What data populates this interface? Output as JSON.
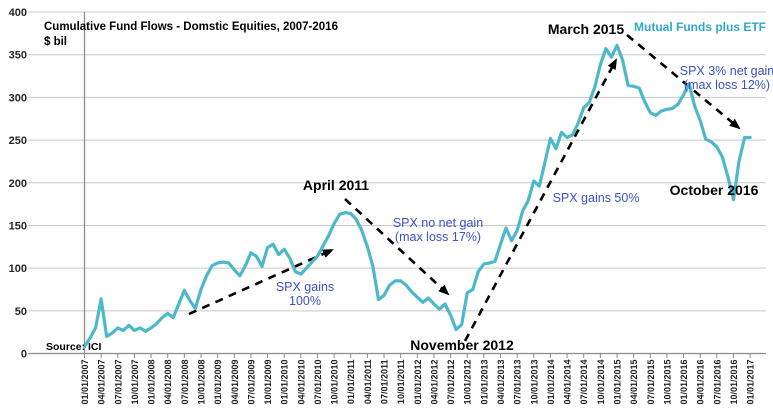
{
  "chart": {
    "title": "Cumulative Fund Flows - Domstic Equities, 2007-2016",
    "subtitle": "$ bil",
    "source": "Source: ICI",
    "legend_label": "Mutual Funds plus ETF",
    "annotations": {
      "april_2011": "April 2011",
      "march_2015": "March 2015",
      "november_2012": "November 2012",
      "october_2016": "October 2016",
      "spx_gains_100_line1": "SPX gains",
      "spx_gains_100_line2": "100%",
      "spx_no_net_gain_line1": "SPX no net gain",
      "spx_no_net_gain_line2": "(max loss 17%)",
      "spx_gains_50": "SPX gains 50%",
      "spx_3_net_gain_line1": "SPX 3% net gain",
      "spx_3_net_gain_line2": "(max loss 12%)"
    },
    "colors": {
      "line_teal": "#4db8ca",
      "legend_teal": "#2fa9c5",
      "annotation_blue": "#3b51c9",
      "gridline_gray": "#c8c8c8",
      "axis_gray": "#8c8c8c",
      "text_black": "#000000"
    }
  },
  "chart_data": {
    "type": "line",
    "title": "Cumulative Fund Flows - Domstic Equities, 2007-2016",
    "ylabel": "$ bil",
    "ylim": [
      0,
      400
    ],
    "y_ticks": [
      0,
      50,
      100,
      150,
      200,
      250,
      300,
      350,
      400
    ],
    "grid": "horizontal",
    "legend_position": "top-right",
    "x_frequency": "monthly",
    "x_start": "01/2007",
    "x_end": "01/2017",
    "x_tick_labels": [
      "01/01/2007",
      "04/01/2007",
      "07/01/2007",
      "10/01/2007",
      "01/01/2008",
      "04/01/2008",
      "07/01/2008",
      "10/01/2008",
      "01/01/2009",
      "04/01/2009",
      "07/01/2009",
      "10/01/2009",
      "01/01/2010",
      "04/01/2010",
      "07/01/2010",
      "10/01/2010",
      "01/01/2011",
      "04/01/2011",
      "07/01/2011",
      "10/01/2011",
      "01/01/2012",
      "04/01/2012",
      "07/01/2012",
      "10/01/2012",
      "01/01/2013",
      "04/01/2013",
      "07/01/2013",
      "10/01/2013",
      "01/01/2014",
      "04/01/2014",
      "07/01/2014",
      "10/01/2014",
      "01/01/2015",
      "04/01/2015",
      "07/01/2015",
      "10/01/2015",
      "01/01/2016",
      "04/01/2016",
      "07/01/2016",
      "10/01/2016",
      "01/01/2017"
    ],
    "series": [
      {
        "name": "Mutual Funds plus ETF",
        "values": [
          8,
          18,
          30,
          64,
          20,
          24,
          30,
          27,
          33,
          27,
          30,
          26,
          30,
          35,
          42,
          47,
          42,
          58,
          74,
          62,
          53,
          75,
          91,
          103,
          106,
          107,
          106,
          98,
          91,
          103,
          118,
          114,
          102,
          124,
          128,
          116,
          122,
          112,
          96,
          93,
          100,
          107,
          114,
          126,
          138,
          152,
          163,
          165,
          164,
          157,
          144,
          125,
          102,
          63,
          68,
          80,
          85,
          85,
          80,
          72,
          66,
          60,
          65,
          58,
          52,
          58,
          45,
          28,
          34,
          71,
          75,
          96,
          105,
          106,
          108,
          128,
          147,
          132,
          144,
          167,
          179,
          202,
          196,
          224,
          252,
          240,
          259,
          253,
          256,
          270,
          288,
          294,
          312,
          338,
          357,
          347,
          361,
          344,
          314,
          313,
          311,
          295,
          282,
          279,
          284,
          286,
          287,
          292,
          303,
          316,
          290,
          273,
          251,
          248,
          242,
          230,
          207,
          180,
          225,
          253,
          253
        ]
      }
    ],
    "trend_annotations": [
      {
        "label": "SPX gains 100%",
        "direction": "up"
      },
      {
        "label": "SPX no net gain (max loss 17%)",
        "direction": "down"
      },
      {
        "label": "SPX gains 50%",
        "direction": "up"
      },
      {
        "label": "SPX 3% net gain (max loss 12%)",
        "direction": "down"
      }
    ]
  }
}
